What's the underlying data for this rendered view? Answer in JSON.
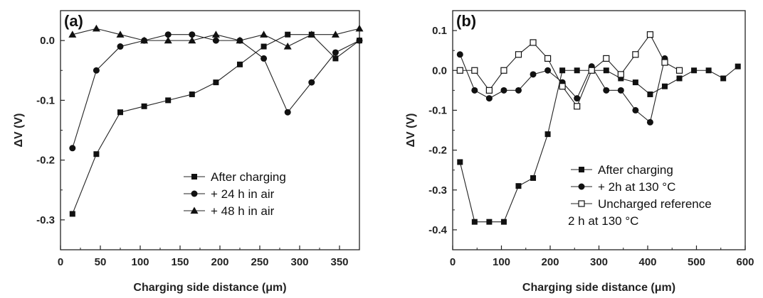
{
  "chart_data": [
    {
      "type": "line",
      "panel_label": "(a)",
      "xlabel": "Charging side distance (μm)",
      "ylabel": "ΔV (V)",
      "xlim": [
        0,
        375
      ],
      "ylim": [
        -0.35,
        0.05
      ],
      "xticks": [
        0,
        50,
        100,
        150,
        200,
        250,
        300,
        350
      ],
      "yticks": [
        0.0,
        -0.1,
        -0.2,
        -0.3
      ],
      "ytick_labels": [
        "0.0",
        "-0.1",
        "-0.2",
        "-0.3"
      ],
      "grid": false,
      "legend_position": "center-right",
      "series": [
        {
          "name": "After charging",
          "marker": "filled-square",
          "x": [
            15,
            45,
            75,
            105,
            135,
            165,
            195,
            225,
            255,
            285,
            315,
            345,
            375
          ],
          "y": [
            -0.29,
            -0.19,
            -0.12,
            -0.11,
            -0.1,
            -0.09,
            -0.07,
            -0.04,
            -0.01,
            0.01,
            0.01,
            -0.03,
            0.0
          ]
        },
        {
          "name": "+ 24 h in air",
          "marker": "filled-circle",
          "x": [
            15,
            45,
            75,
            105,
            135,
            165,
            195,
            225,
            255,
            285,
            315,
            345,
            375
          ],
          "y": [
            -0.18,
            -0.05,
            -0.01,
            0.0,
            0.01,
            0.01,
            0.0,
            0.0,
            -0.03,
            -0.12,
            -0.07,
            -0.02,
            0.0
          ]
        },
        {
          "name": "+ 48 h in air",
          "marker": "filled-triangle",
          "x": [
            15,
            45,
            75,
            105,
            135,
            165,
            195,
            225,
            255,
            285,
            315,
            345,
            375
          ],
          "y": [
            0.01,
            0.02,
            0.01,
            0.0,
            0.0,
            0.0,
            0.01,
            0.0,
            0.01,
            -0.01,
            0.01,
            0.01,
            0.02
          ]
        }
      ]
    },
    {
      "type": "line",
      "panel_label": "(b)",
      "xlabel": "Charging side distance (μm)",
      "ylabel": "ΔV (V)",
      "xlim": [
        0,
        600
      ],
      "ylim": [
        -0.45,
        0.15
      ],
      "xticks": [
        0,
        100,
        200,
        300,
        400,
        500,
        600
      ],
      "yticks": [
        0.1,
        0.0,
        -0.1,
        -0.2,
        -0.3,
        -0.4
      ],
      "ytick_labels": [
        "0.1",
        "0.0",
        "-0.1",
        "-0.2",
        "-0.3",
        "-0.4"
      ],
      "grid": false,
      "legend_position": "bottom-right",
      "legend_note": "2 h at 130 °C",
      "series": [
        {
          "name": "After charging",
          "marker": "filled-square",
          "x": [
            15,
            45,
            75,
            105,
            135,
            165,
            195,
            225,
            255,
            285,
            315,
            345,
            375,
            405,
            435,
            465,
            495,
            525,
            555,
            585
          ],
          "y": [
            -0.23,
            -0.38,
            -0.38,
            -0.38,
            -0.29,
            -0.27,
            -0.16,
            0.0,
            0.0,
            0.0,
            0.0,
            -0.02,
            -0.03,
            -0.06,
            -0.04,
            -0.02,
            0.0,
            0.0,
            -0.02,
            0.01
          ]
        },
        {
          "name": "+ 2h at 130 °C",
          "marker": "filled-circle",
          "x": [
            15,
            45,
            75,
            105,
            135,
            165,
            195,
            225,
            255,
            285,
            315,
            345,
            375,
            405,
            435
          ],
          "y": [
            0.04,
            -0.05,
            -0.07,
            -0.05,
            -0.05,
            -0.01,
            0.0,
            -0.03,
            -0.07,
            0.01,
            -0.05,
            -0.05,
            -0.1,
            -0.13,
            0.03
          ]
        },
        {
          "name": "Uncharged reference",
          "marker": "open-square",
          "x": [
            15,
            45,
            75,
            105,
            135,
            165,
            195,
            225,
            255,
            285,
            315,
            345,
            375,
            405,
            435,
            465
          ],
          "y": [
            0.0,
            0.0,
            -0.05,
            0.0,
            0.04,
            0.07,
            0.03,
            -0.04,
            -0.09,
            0.0,
            0.03,
            -0.01,
            0.04,
            0.09,
            0.02,
            0.0
          ]
        }
      ]
    }
  ]
}
